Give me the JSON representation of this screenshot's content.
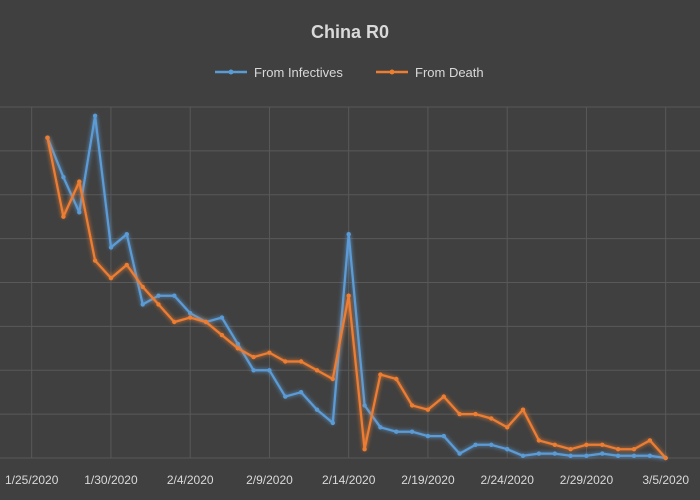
{
  "chart_data": {
    "type": "line",
    "title": "China R0",
    "xlabel": "",
    "ylabel": "",
    "x_tick_labels": [
      "1/25/2020",
      "1/30/2020",
      "2/4/2020",
      "2/9/2020",
      "2/14/2020",
      "2/19/2020",
      "2/24/2020",
      "2/29/2020",
      "3/5/2020"
    ],
    "x": [
      "1/26/2020",
      "1/27/2020",
      "1/28/2020",
      "1/29/2020",
      "1/30/2020",
      "1/31/2020",
      "2/1/2020",
      "2/2/2020",
      "2/3/2020",
      "2/4/2020",
      "2/5/2020",
      "2/6/2020",
      "2/7/2020",
      "2/8/2020",
      "2/9/2020",
      "2/10/2020",
      "2/11/2020",
      "2/12/2020",
      "2/13/2020",
      "2/14/2020",
      "2/15/2020",
      "2/16/2020",
      "2/17/2020",
      "2/18/2020",
      "2/19/2020",
      "2/20/2020",
      "2/21/2020",
      "2/22/2020",
      "2/23/2020",
      "2/24/2020",
      "2/25/2020",
      "2/26/2020",
      "2/27/2020",
      "2/28/2020",
      "2/29/2020",
      "3/1/2020",
      "3/2/2020",
      "3/3/2020",
      "3/4/2020",
      "3/5/2020"
    ],
    "ylim": [
      0,
      8
    ],
    "grid": true,
    "legend_position": "top",
    "series": [
      {
        "name": "From Infectives",
        "color": "#5b9bd5",
        "values": [
          7.3,
          6.4,
          5.6,
          7.8,
          4.8,
          5.1,
          3.5,
          3.7,
          3.7,
          3.3,
          3.1,
          3.2,
          2.6,
          2.0,
          2.0,
          1.4,
          1.5,
          1.1,
          0.8,
          5.1,
          1.2,
          0.7,
          0.6,
          0.6,
          0.5,
          0.5,
          0.1,
          0.3,
          0.3,
          0.2,
          0.05,
          0.1,
          0.1,
          0.05,
          0.05,
          0.1,
          0.05,
          0.05,
          0.05,
          0.0
        ]
      },
      {
        "name": "From Death",
        "color": "#ed7d31",
        "values": [
          7.3,
          5.5,
          6.3,
          4.5,
          4.1,
          4.4,
          3.9,
          3.5,
          3.1,
          3.2,
          3.1,
          2.8,
          2.5,
          2.3,
          2.4,
          2.2,
          2.2,
          2.0,
          1.8,
          3.7,
          0.2,
          1.9,
          1.8,
          1.2,
          1.1,
          1.4,
          1.0,
          1.0,
          0.9,
          0.7,
          1.1,
          0.4,
          0.3,
          0.2,
          0.3,
          0.3,
          0.2,
          0.2,
          0.4,
          0.0
        ]
      }
    ]
  }
}
